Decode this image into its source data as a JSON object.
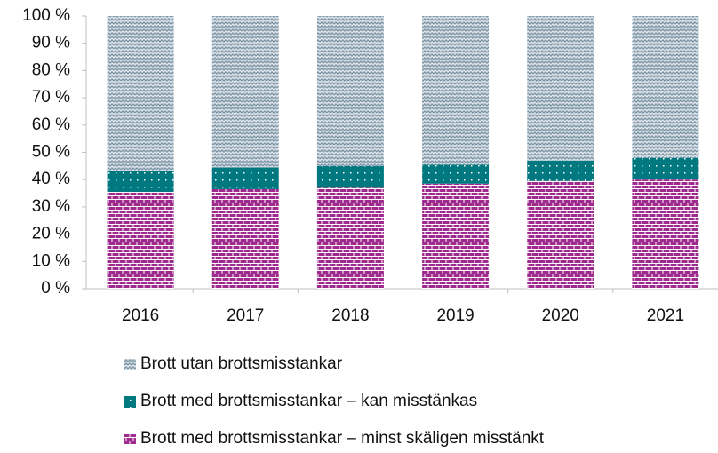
{
  "chart_data": {
    "type": "stacked_bar",
    "categories": [
      "2016",
      "2017",
      "2018",
      "2019",
      "2020",
      "2021"
    ],
    "series": [
      {
        "name": "Brott med brottsmisstankar – minst skäligen misstänkt",
        "color": "#9e2a8e",
        "values": [
          35.5,
          36.5,
          37,
          38.5,
          39.5,
          40
        ]
      },
      {
        "name": "Brott med brottsmisstankar – kan misstänkas",
        "color": "#00787f",
        "values": [
          7.5,
          8,
          8,
          7,
          7.5,
          8
        ]
      },
      {
        "name": "Brott utan brottsmisstankar",
        "color": "#7d97a8",
        "values": [
          57,
          55.5,
          55,
          54.5,
          53,
          52
        ]
      }
    ],
    "ylim": [
      0,
      100
    ],
    "yticks": [
      {
        "value": 0,
        "label": "0 %"
      },
      {
        "value": 10,
        "label": "10 %"
      },
      {
        "value": 20,
        "label": "20 %"
      },
      {
        "value": 30,
        "label": "30 %"
      },
      {
        "value": 40,
        "label": "40 %"
      },
      {
        "value": 50,
        "label": "50 %"
      },
      {
        "value": 60,
        "label": "60 %"
      },
      {
        "value": 70,
        "label": "70 %"
      },
      {
        "value": 80,
        "label": "80 %"
      },
      {
        "value": 90,
        "label": "90 %"
      },
      {
        "value": 100,
        "label": "100 %"
      }
    ]
  }
}
